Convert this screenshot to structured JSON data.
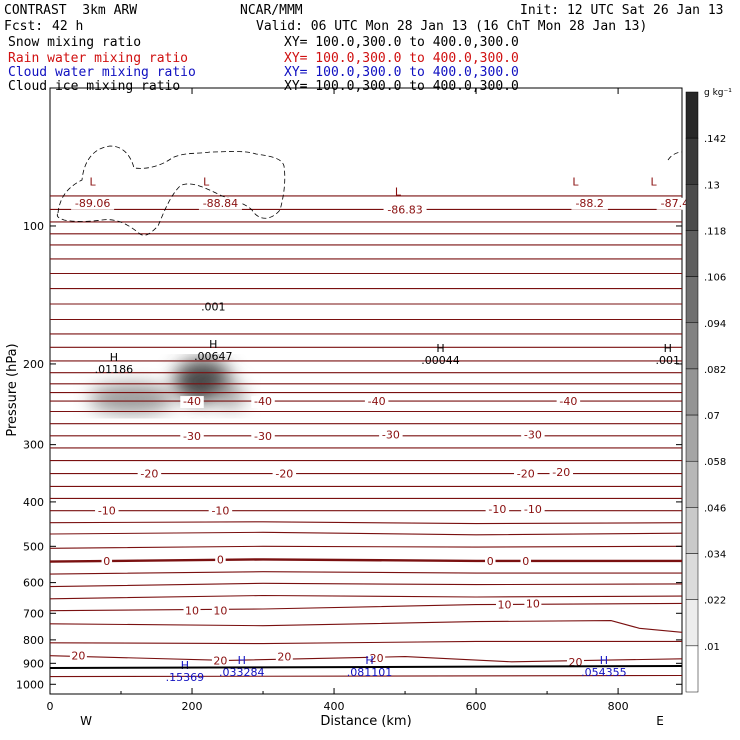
{
  "header": {
    "model": "CONTRAST  3km ARW",
    "center": "NCAR/MMM",
    "init": "Init: 12 UTC Sat 26 Jan 13",
    "fcst_label": "Fcst:",
    "fcst_value": "42 h",
    "valid": "Valid: 06 UTC Mon 28 Jan 13 (16 ChT Mon 28 Jan 13)"
  },
  "fields": [
    {
      "name": "Snow mixing ratio",
      "xy": "XY= 100.0,300.0 to 400.0,300.0",
      "color": "#000000"
    },
    {
      "name": "Rain water mixing ratio",
      "xy": "XY= 100.0,300.0 to 400.0,300.0",
      "color": "#d01010"
    },
    {
      "name": "Cloud water mixing ratio",
      "xy": "XY= 100.0,300.0 to 400.0,300.0",
      "color": "#1010c0"
    },
    {
      "name": "Cloud ice mixing ratio",
      "xy": "XY= 100.0,300.0 to 400.0,300.0",
      "color": "#000000"
    }
  ],
  "chart_data": {
    "type": "contour",
    "xlabel": "Distance (km)",
    "ylabel": "Pressure (hPa)",
    "xlim": [
      0,
      890
    ],
    "ylim": [
      1050,
      50
    ],
    "y_scale": "log",
    "x_ticks": [
      0,
      200,
      400,
      600,
      800
    ],
    "y_ticks": [
      100,
      200,
      300,
      400,
      500,
      600,
      700,
      800,
      900,
      1000
    ],
    "x_ends": {
      "left": "W",
      "right": "E"
    },
    "colorbar": {
      "unit": "g kg⁻¹",
      "labels": [
        ".142",
        ".13",
        ".118",
        ".106",
        ".094",
        ".082",
        ".07",
        ".058",
        ".046",
        ".034",
        ".022",
        ".01"
      ]
    },
    "isotherm_labels": [
      {
        "text": "-89.06",
        "x": 60,
        "p": 89
      },
      {
        "text": "-88.84",
        "x": 240,
        "p": 89
      },
      {
        "text": "-86.83",
        "x": 500,
        "p": 92
      },
      {
        "text": "-88.2",
        "x": 760,
        "p": 89
      },
      {
        "text": "-87.4",
        "x": 880,
        "p": 89
      },
      {
        "text": "-40",
        "x": 200,
        "p": 241
      },
      {
        "text": "-40",
        "x": 300,
        "p": 241
      },
      {
        "text": "-40",
        "x": 460,
        "p": 241
      },
      {
        "text": "-40",
        "x": 730,
        "p": 241
      },
      {
        "text": "-30",
        "x": 200,
        "p": 287
      },
      {
        "text": "-30",
        "x": 300,
        "p": 287
      },
      {
        "text": "-30",
        "x": 480,
        "p": 285
      },
      {
        "text": "-30",
        "x": 680,
        "p": 285
      },
      {
        "text": "-20",
        "x": 140,
        "p": 347
      },
      {
        "text": "-20",
        "x": 330,
        "p": 347
      },
      {
        "text": "-20",
        "x": 670,
        "p": 347
      },
      {
        "text": "-20",
        "x": 720,
        "p": 344
      },
      {
        "text": "-10",
        "x": 80,
        "p": 418
      },
      {
        "text": "-10",
        "x": 240,
        "p": 418
      },
      {
        "text": "-10",
        "x": 630,
        "p": 414
      },
      {
        "text": "-10",
        "x": 680,
        "p": 414
      },
      {
        "text": "0",
        "x": 80,
        "p": 538
      },
      {
        "text": "0",
        "x": 240,
        "p": 534
      },
      {
        "text": "0",
        "x": 620,
        "p": 538
      },
      {
        "text": "0",
        "x": 670,
        "p": 538
      },
      {
        "text": "10",
        "x": 200,
        "p": 691
      },
      {
        "text": "10",
        "x": 240,
        "p": 691
      },
      {
        "text": "10",
        "x": 640,
        "p": 670
      },
      {
        "text": "10",
        "x": 680,
        "p": 666
      },
      {
        "text": "20",
        "x": 40,
        "p": 866
      },
      {
        "text": "20",
        "x": 240,
        "p": 887
      },
      {
        "text": "20",
        "x": 330,
        "p": 870
      },
      {
        "text": "20",
        "x": 460,
        "p": 877
      },
      {
        "text": "20",
        "x": 740,
        "p": 893
      }
    ],
    "low_labels": [
      {
        "text": "L",
        "x": 60,
        "p": 80
      },
      {
        "text": "L",
        "x": 220,
        "p": 80
      },
      {
        "text": "L",
        "x": 490,
        "p": 84
      },
      {
        "text": "L",
        "x": 740,
        "p": 80
      },
      {
        "text": "L",
        "x": 850,
        "p": 80
      }
    ],
    "ice_maxima": [
      {
        "h": "H",
        "value": ".01186",
        "x": 90,
        "p": 205
      },
      {
        "h": "H",
        "value": ".00647",
        "x": 230,
        "p": 192
      },
      {
        "h": "H",
        "value": ".00044",
        "x": 550,
        "p": 196
      },
      {
        "h": "H",
        "value": ".001",
        "x": 870,
        "p": 196
      }
    ],
    "ice_contour_label": {
      "text": ".001",
      "x": 230,
      "p": 150
    },
    "cloud_water_maxima": [
      {
        "h": "H",
        "value": ".15369",
        "x": 190,
        "p": 965
      },
      {
        "h": "H",
        "value": ".033284",
        "x": 270,
        "p": 941
      },
      {
        "h": "H",
        "value": ".081101",
        "x": 450,
        "p": 941
      },
      {
        "h": "H",
        "value": ".054355",
        "x": 780,
        "p": 941
      }
    ],
    "snow_blobs": [
      {
        "x": 115,
        "p": 238,
        "sx": 60,
        "sp": 18,
        "value": 0.06
      },
      {
        "x": 215,
        "p": 218,
        "sx": 40,
        "sp": 25,
        "value": 0.12
      },
      {
        "x": 255,
        "p": 235,
        "sx": 20,
        "sp": 15,
        "value": 0.05
      }
    ],
    "isotherms_hPa": [
      [
        [
          0,
          86
        ],
        [
          890,
          86
        ]
      ],
      [
        [
          0,
          92
        ],
        [
          890,
          92
        ]
      ],
      [
        [
          0,
          98
        ],
        [
          890,
          98
        ]
      ],
      [
        [
          0,
          104
        ],
        [
          890,
          104
        ]
      ],
      [
        [
          0,
          110
        ],
        [
          890,
          110
        ]
      ],
      [
        [
          0,
          118
        ],
        [
          890,
          118
        ]
      ],
      [
        [
          0,
          127
        ],
        [
          890,
          127
        ]
      ],
      [
        [
          0,
          137
        ],
        [
          890,
          137
        ]
      ],
      [
        [
          0,
          148
        ],
        [
          890,
          148
        ]
      ],
      [
        [
          0,
          160
        ],
        [
          890,
          160
        ]
      ],
      [
        [
          0,
          172
        ],
        [
          890,
          172
        ]
      ],
      [
        [
          0,
          184
        ],
        [
          890,
          184
        ]
      ],
      [
        [
          0,
          197
        ],
        [
          890,
          197
        ]
      ],
      [
        [
          0,
          209
        ],
        [
          890,
          209
        ]
      ],
      [
        [
          0,
          221
        ],
        [
          890,
          221
        ]
      ],
      [
        [
          0,
          231
        ],
        [
          890,
          231
        ]
      ],
      [
        [
          0,
          241
        ],
        [
          890,
          241
        ]
      ],
      [
        [
          0,
          254
        ],
        [
          890,
          254
        ]
      ],
      [
        [
          0,
          270
        ],
        [
          890,
          270
        ]
      ],
      [
        [
          0,
          287
        ],
        [
          890,
          287
        ]
      ],
      [
        [
          0,
          305
        ],
        [
          890,
          305
        ]
      ],
      [
        [
          0,
          325
        ],
        [
          890,
          325
        ]
      ],
      [
        [
          0,
          347
        ],
        [
          890,
          347
        ]
      ],
      [
        [
          0,
          370
        ],
        [
          890,
          370
        ]
      ],
      [
        [
          0,
          393
        ],
        [
          890,
          393
        ]
      ],
      [
        [
          0,
          418
        ],
        [
          890,
          418
        ]
      ],
      [
        [
          0,
          444
        ],
        [
          300,
          442
        ],
        [
          600,
          446
        ],
        [
          890,
          444
        ]
      ],
      [
        [
          0,
          470
        ],
        [
          300,
          466
        ],
        [
          600,
          472
        ],
        [
          890,
          468
        ]
      ],
      [
        [
          0,
          505
        ],
        [
          300,
          500
        ],
        [
          600,
          502
        ],
        [
          890,
          500
        ]
      ],
      [
        [
          0,
          540
        ],
        [
          300,
          534
        ],
        [
          600,
          538
        ],
        [
          890,
          538
        ]
      ],
      [
        [
          0,
          575
        ],
        [
          300,
          568
        ],
        [
          600,
          572
        ],
        [
          890,
          572
        ]
      ],
      [
        [
          0,
          612
        ],
        [
          300,
          602
        ],
        [
          600,
          606
        ],
        [
          890,
          604
        ]
      ],
      [
        [
          0,
          651
        ],
        [
          300,
          640
        ],
        [
          600,
          645
        ],
        [
          890,
          642
        ]
      ],
      [
        [
          0,
          691
        ],
        [
          300,
          685
        ],
        [
          600,
          670
        ],
        [
          890,
          666
        ]
      ],
      [
        [
          0,
          738
        ],
        [
          300,
          745
        ],
        [
          600,
          730
        ],
        [
          790,
          726
        ],
        [
          830,
          755
        ],
        [
          890,
          770
        ]
      ],
      [
        [
          0,
          812
        ],
        [
          300,
          815
        ],
        [
          600,
          806
        ],
        [
          890,
          806
        ]
      ],
      [
        [
          0,
          866
        ],
        [
          250,
          887
        ],
        [
          500,
          870
        ],
        [
          650,
          893
        ],
        [
          890,
          880
        ]
      ],
      [
        [
          0,
          962
        ],
        [
          890,
          957
        ]
      ]
    ]
  }
}
